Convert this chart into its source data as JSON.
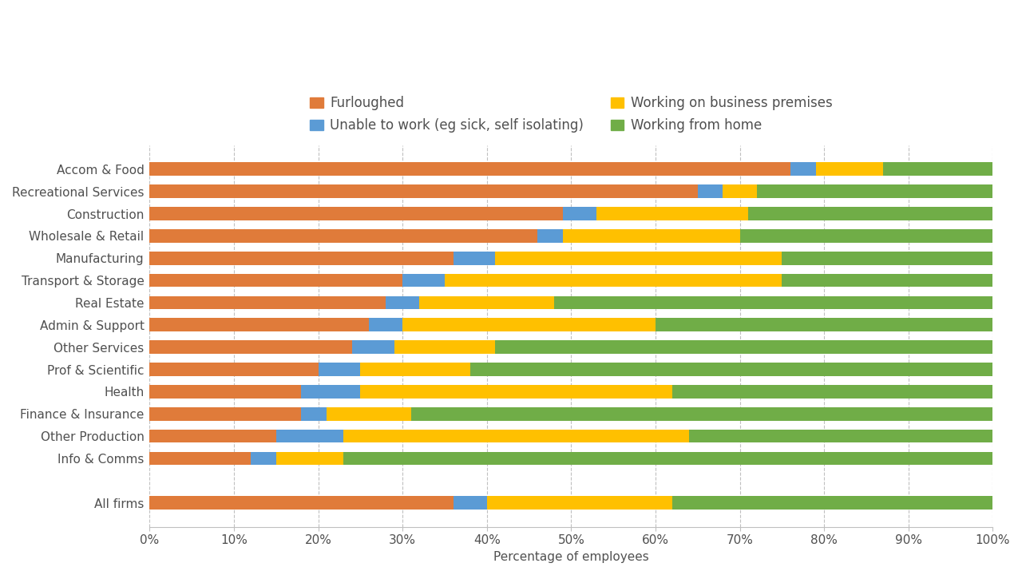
{
  "categories": [
    "Accom & Food",
    "Recreational Services",
    "Construction",
    "Wholesale & Retail",
    "Manufacturing",
    "Transport & Storage",
    "Real Estate",
    "Admin & Support",
    "Other Services",
    "Prof & Scientific",
    "Health",
    "Finance & Insurance",
    "Other Production",
    "Info & Comms",
    "",
    "All firms"
  ],
  "furloughed": [
    76,
    65,
    49,
    46,
    36,
    30,
    28,
    26,
    24,
    20,
    18,
    18,
    15,
    12,
    0,
    36
  ],
  "unable_to_work": [
    3,
    3,
    4,
    3,
    5,
    5,
    4,
    4,
    5,
    5,
    7,
    3,
    8,
    3,
    0,
    4
  ],
  "on_premises": [
    8,
    4,
    18,
    21,
    34,
    40,
    16,
    30,
    12,
    13,
    37,
    10,
    41,
    8,
    0,
    22
  ],
  "from_home": [
    13,
    28,
    29,
    30,
    25,
    25,
    52,
    40,
    59,
    62,
    38,
    69,
    36,
    77,
    0,
    38
  ],
  "colors": {
    "furloughed": "#E07B3A",
    "unable_to_work": "#5B9BD5",
    "on_premises": "#FFC000",
    "from_home": "#70AD47"
  },
  "legend_labels": [
    "Furloughed",
    "Unable to work (eg sick, self isolating)",
    "Working on business premises",
    "Working from home"
  ],
  "xlabel": "Percentage of employees",
  "background_color": "#FFFFFF",
  "figsize": [
    12.8,
    7.2
  ],
  "dpi": 100
}
